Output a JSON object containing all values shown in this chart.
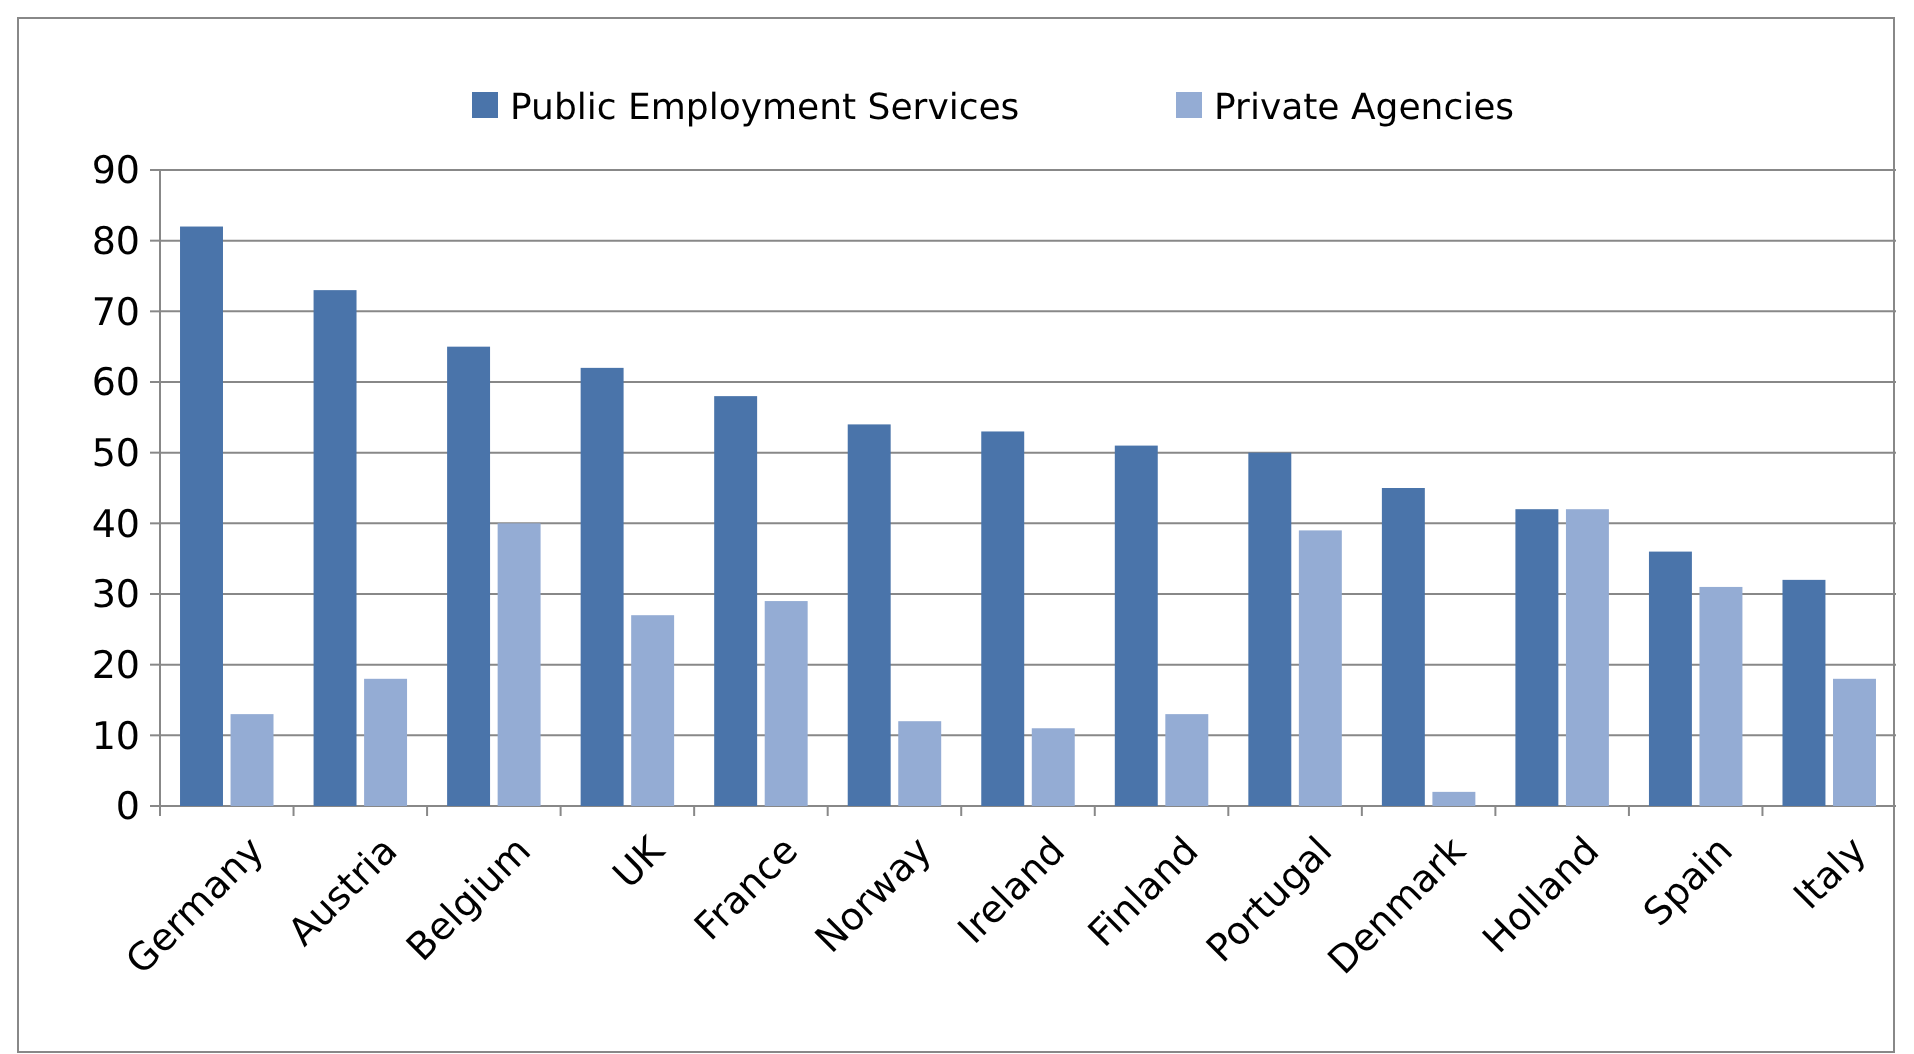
{
  "chart_data": {
    "type": "bar",
    "categories": [
      "Germany",
      "Austria",
      "Belgium",
      "UK",
      "France",
      "Norway",
      "Ireland",
      "Finland",
      "Portugal",
      "Denmark",
      "Holland",
      "Spain",
      "Italy"
    ],
    "series": [
      {
        "name": "Public Employment Services",
        "color": "#4a74aa",
        "values": [
          82,
          73,
          65,
          62,
          58,
          54,
          53,
          51,
          50,
          45,
          42,
          36,
          32
        ]
      },
      {
        "name": "Private Agencies",
        "color": "#94acd4",
        "values": [
          13,
          18,
          40,
          27,
          29,
          12,
          11,
          13,
          39,
          2,
          42,
          31,
          18
        ]
      }
    ],
    "ylim": [
      0,
      90
    ],
    "yticks": [
      0,
      10,
      20,
      30,
      40,
      50,
      60,
      70,
      80,
      90
    ],
    "grid": "y",
    "legend": "top"
  }
}
